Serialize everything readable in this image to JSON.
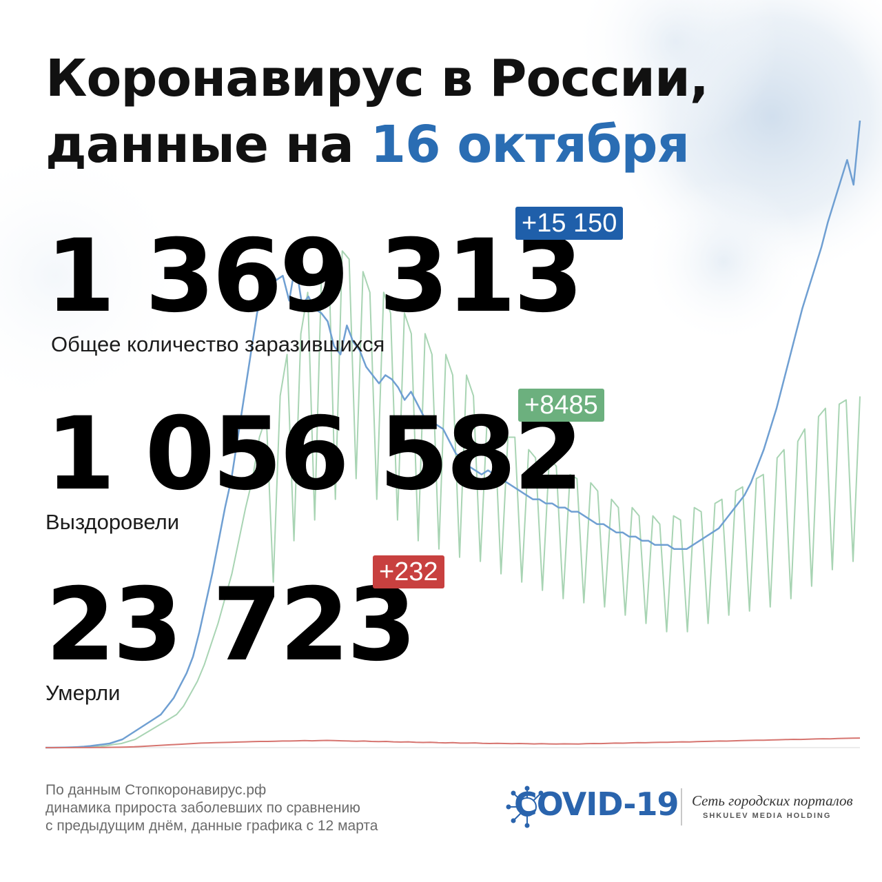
{
  "header": {
    "title_line1": "Коронавирус в России,",
    "title_line2_prefix": "данные на ",
    "title_line2_highlight": "16 октября"
  },
  "stats": {
    "infected": {
      "value": "1 369 313",
      "delta": "+15 150",
      "label": "Общее количество заразившихся",
      "color": "#1f5faa"
    },
    "recovered": {
      "value": "1 056 582",
      "delta": "+8485",
      "label": "Выздоровели",
      "color": "#6cb07e"
    },
    "deaths": {
      "value": "23 723",
      "delta": "+232",
      "label": "Умерли",
      "color": "#c8403f"
    }
  },
  "footer": {
    "line1": "По данным Стопкоронавирус.рф",
    "line2": "динамика прироста заболевших по сравнению",
    "line3": "с предыдущим днём, данные графика с 12 марта"
  },
  "logo": {
    "name": "COVID-19",
    "sub1": "Сеть городских порталов",
    "sub2": "SHKULEV MEDIA HOLDING",
    "icon": "virus-icon"
  },
  "chart_data": {
    "type": "line",
    "x_start": "12 марта",
    "x_end": "16 октября",
    "series": [
      {
        "color": "#6f9fd2",
        "values": [
          0,
          0,
          2,
          5,
          8,
          15,
          25,
          40,
          60,
          80,
          100,
          150,
          200,
          300,
          400,
          500,
          600,
          700,
          800,
          1000,
          1200,
          1500,
          1800,
          2200,
          2800,
          3500,
          4200,
          5000,
          5800,
          6500,
          7500,
          8500,
          9500,
          10500,
          11000,
          11500,
          11300,
          11400,
          10800,
          11700,
          10700,
          10900,
          10600,
          10500,
          10300,
          9700,
          9500,
          10200,
          9800,
          9600,
          9200,
          9000,
          8800,
          9000,
          8900,
          8700,
          8400,
          8600,
          8300,
          8000,
          7900,
          7800,
          7700,
          7400,
          7100,
          7000,
          6800,
          6700,
          6600,
          6700,
          6600,
          6500,
          6400,
          6300,
          6200,
          6100,
          6000,
          6000,
          5900,
          5900,
          5800,
          5800,
          5700,
          5700,
          5600,
          5500,
          5400,
          5400,
          5300,
          5200,
          5200,
          5100,
          5100,
          5000,
          5000,
          4900,
          4900,
          4900,
          4800,
          4800,
          4800,
          4900,
          5000,
          5100,
          5200,
          5300,
          5500,
          5700,
          5900,
          6100,
          6400,
          6800,
          7200,
          7700,
          8200,
          8800,
          9400,
          10000,
          10600,
          11100,
          11600,
          12100,
          12700,
          13200,
          13700,
          14200,
          13600,
          15150
        ]
      },
      {
        "color": "#a8d4b3",
        "values": [
          0,
          0,
          0,
          1,
          2,
          5,
          10,
          20,
          30,
          50,
          80,
          100,
          150,
          200,
          300,
          400,
          500,
          600,
          700,
          800,
          1000,
          1300,
          1600,
          2000,
          2500,
          3000,
          3600,
          4200,
          5000,
          5800,
          6500,
          7500,
          8000,
          4000,
          8500,
          9500,
          5000,
          10000,
          11000,
          5500,
          11500,
          12000,
          6000,
          12000,
          11800,
          6500,
          11500,
          11000,
          6000,
          11000,
          10500,
          5500,
          10500,
          10000,
          5000,
          10000,
          9500,
          4800,
          9500,
          9000,
          4600,
          9000,
          8500,
          4500,
          8000,
          8000,
          4200,
          7500,
          7500,
          4000,
          7200,
          7000,
          3800,
          7000,
          6800,
          3600,
          6600,
          6500,
          3500,
          6400,
          6200,
          3400,
          6000,
          5800,
          3200,
          5800,
          5600,
          3000,
          5600,
          5400,
          2800,
          5600,
          5500,
          2800,
          5800,
          5700,
          3000,
          5900,
          6000,
          3200,
          6200,
          6300,
          3300,
          6500,
          6600,
          3400,
          7000,
          7200,
          3600,
          7400,
          7700,
          3900,
          8000,
          8200,
          4300,
          8300,
          8400,
          4500,
          8485
        ]
      },
      {
        "color": "#d6746f",
        "values": [
          0,
          0,
          0,
          0,
          1,
          1,
          2,
          3,
          5,
          8,
          10,
          15,
          20,
          30,
          40,
          50,
          60,
          70,
          80,
          90,
          100,
          110,
          115,
          120,
          125,
          130,
          135,
          140,
          145,
          150,
          150,
          155,
          160,
          160,
          165,
          170,
          165,
          170,
          175,
          170,
          165,
          160,
          155,
          160,
          150,
          145,
          150,
          140,
          135,
          140,
          130,
          125,
          130,
          120,
          115,
          120,
          110,
          110,
          115,
          105,
          100,
          105,
          100,
          95,
          100,
          95,
          90,
          95,
          90,
          88,
          92,
          90,
          88,
          95,
          100,
          98,
          105,
          110,
          108,
          115,
          120,
          118,
          125,
          130,
          128,
          135,
          140,
          138,
          145,
          150,
          155,
          160,
          158,
          165,
          170,
          175,
          180,
          178,
          185,
          190,
          195,
          200,
          198,
          205,
          210,
          215,
          212,
          220,
          225,
          228,
          232
        ]
      }
    ]
  }
}
